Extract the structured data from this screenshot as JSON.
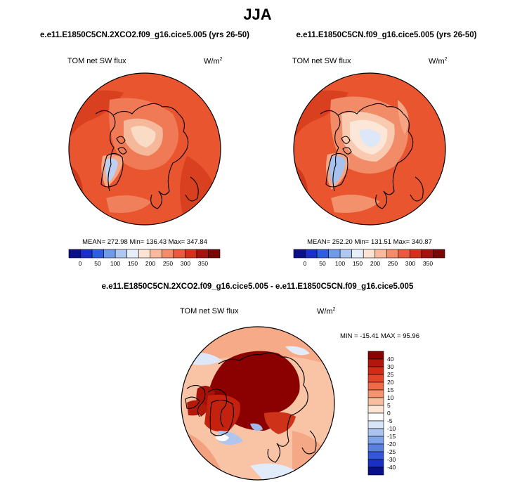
{
  "figure": {
    "title": "JJA"
  },
  "panels": [
    {
      "case": "e.e11.E1850C5CN.2XCO2.f09_g16.cice5.005 (yrs 26-50)",
      "variable": "TOM net SW flux",
      "units_base": "W/m",
      "units_exp": "2",
      "stats": "MEAN= 272.98  Min= 136.43  Max= 347.84"
    },
    {
      "case": "e.e11.E1850C5CN.f09_g16.cice5.005 (yrs 26-50)",
      "variable": "TOM net SW flux",
      "units_base": "W/m",
      "units_exp": "2",
      "stats": "MEAN= 252.20  Min= 131.51  Max= 340.87"
    },
    {
      "case": "e.e11.E1850C5CN.2XCO2.f09_g16.cice5.005 - e.e11.E1850C5CN.f09_g16.cice5.005",
      "variable": "TOM net SW flux",
      "units_base": "W/m",
      "units_exp": "2",
      "stats": "MIN = -15.41 MAX =  95.96"
    }
  ],
  "abs_colorbar": {
    "tick_labels": [
      "0",
      "50",
      "100",
      "150",
      "200",
      "250",
      "300",
      "350"
    ],
    "colors": [
      "#0a0f8a",
      "#1a2fc8",
      "#2f5fe0",
      "#6f9ae8",
      "#b0c8f0",
      "#e6eefa",
      "#fde3d2",
      "#f9b99a",
      "#f48b6a",
      "#ea5a3c",
      "#d3311e",
      "#a3120e",
      "#7a0606"
    ]
  },
  "diff_colorbar": {
    "tick_labels": [
      "40",
      "30",
      "25",
      "20",
      "15",
      "10",
      "5",
      "0",
      "-5",
      "-10",
      "-15",
      "-20",
      "-25",
      "-30",
      "-40"
    ],
    "colors": [
      "#8b0000",
      "#b3160d",
      "#cf2d18",
      "#e2462a",
      "#ef6a46",
      "#f5936f",
      "#f9bd9f",
      "#fde5d6",
      "#ffffff",
      "#d8e4f7",
      "#aac4ef",
      "#7fa2e8",
      "#5a80e0",
      "#3357d6",
      "#1a2fc8",
      "#0a0f8a"
    ]
  },
  "chart_data": {
    "type": "map",
    "projection": "north polar stereographic",
    "season": "JJA",
    "maps": [
      {
        "case": "e.e11.E1850C5CN.2XCO2.f09_g16.cice5.005 (yrs 26-50)",
        "variable": "TOM net SW flux",
        "units": "W/m2",
        "mean": 272.98,
        "min": 136.43,
        "max": 347.84
      },
      {
        "case": "e.e11.E1850C5CN.f09_g16.cice5.005 (yrs 26-50)",
        "variable": "TOM net SW flux",
        "units": "W/m2",
        "mean": 252.2,
        "min": 131.51,
        "max": 340.87
      },
      {
        "case": "e.e11.E1850C5CN.2XCO2.f09_g16.cice5.005 - e.e11.E1850C5CN.f09_g16.cice5.005",
        "variable": "TOM net SW flux",
        "units": "W/m2",
        "min": -15.41,
        "max": 95.96
      }
    ],
    "abs_levels": [
      0,
      50,
      100,
      150,
      200,
      250,
      300,
      350
    ],
    "diff_levels": [
      40,
      30,
      25,
      20,
      15,
      10,
      5,
      0,
      -5,
      -10,
      -15,
      -20,
      -25,
      -30,
      -40
    ]
  }
}
